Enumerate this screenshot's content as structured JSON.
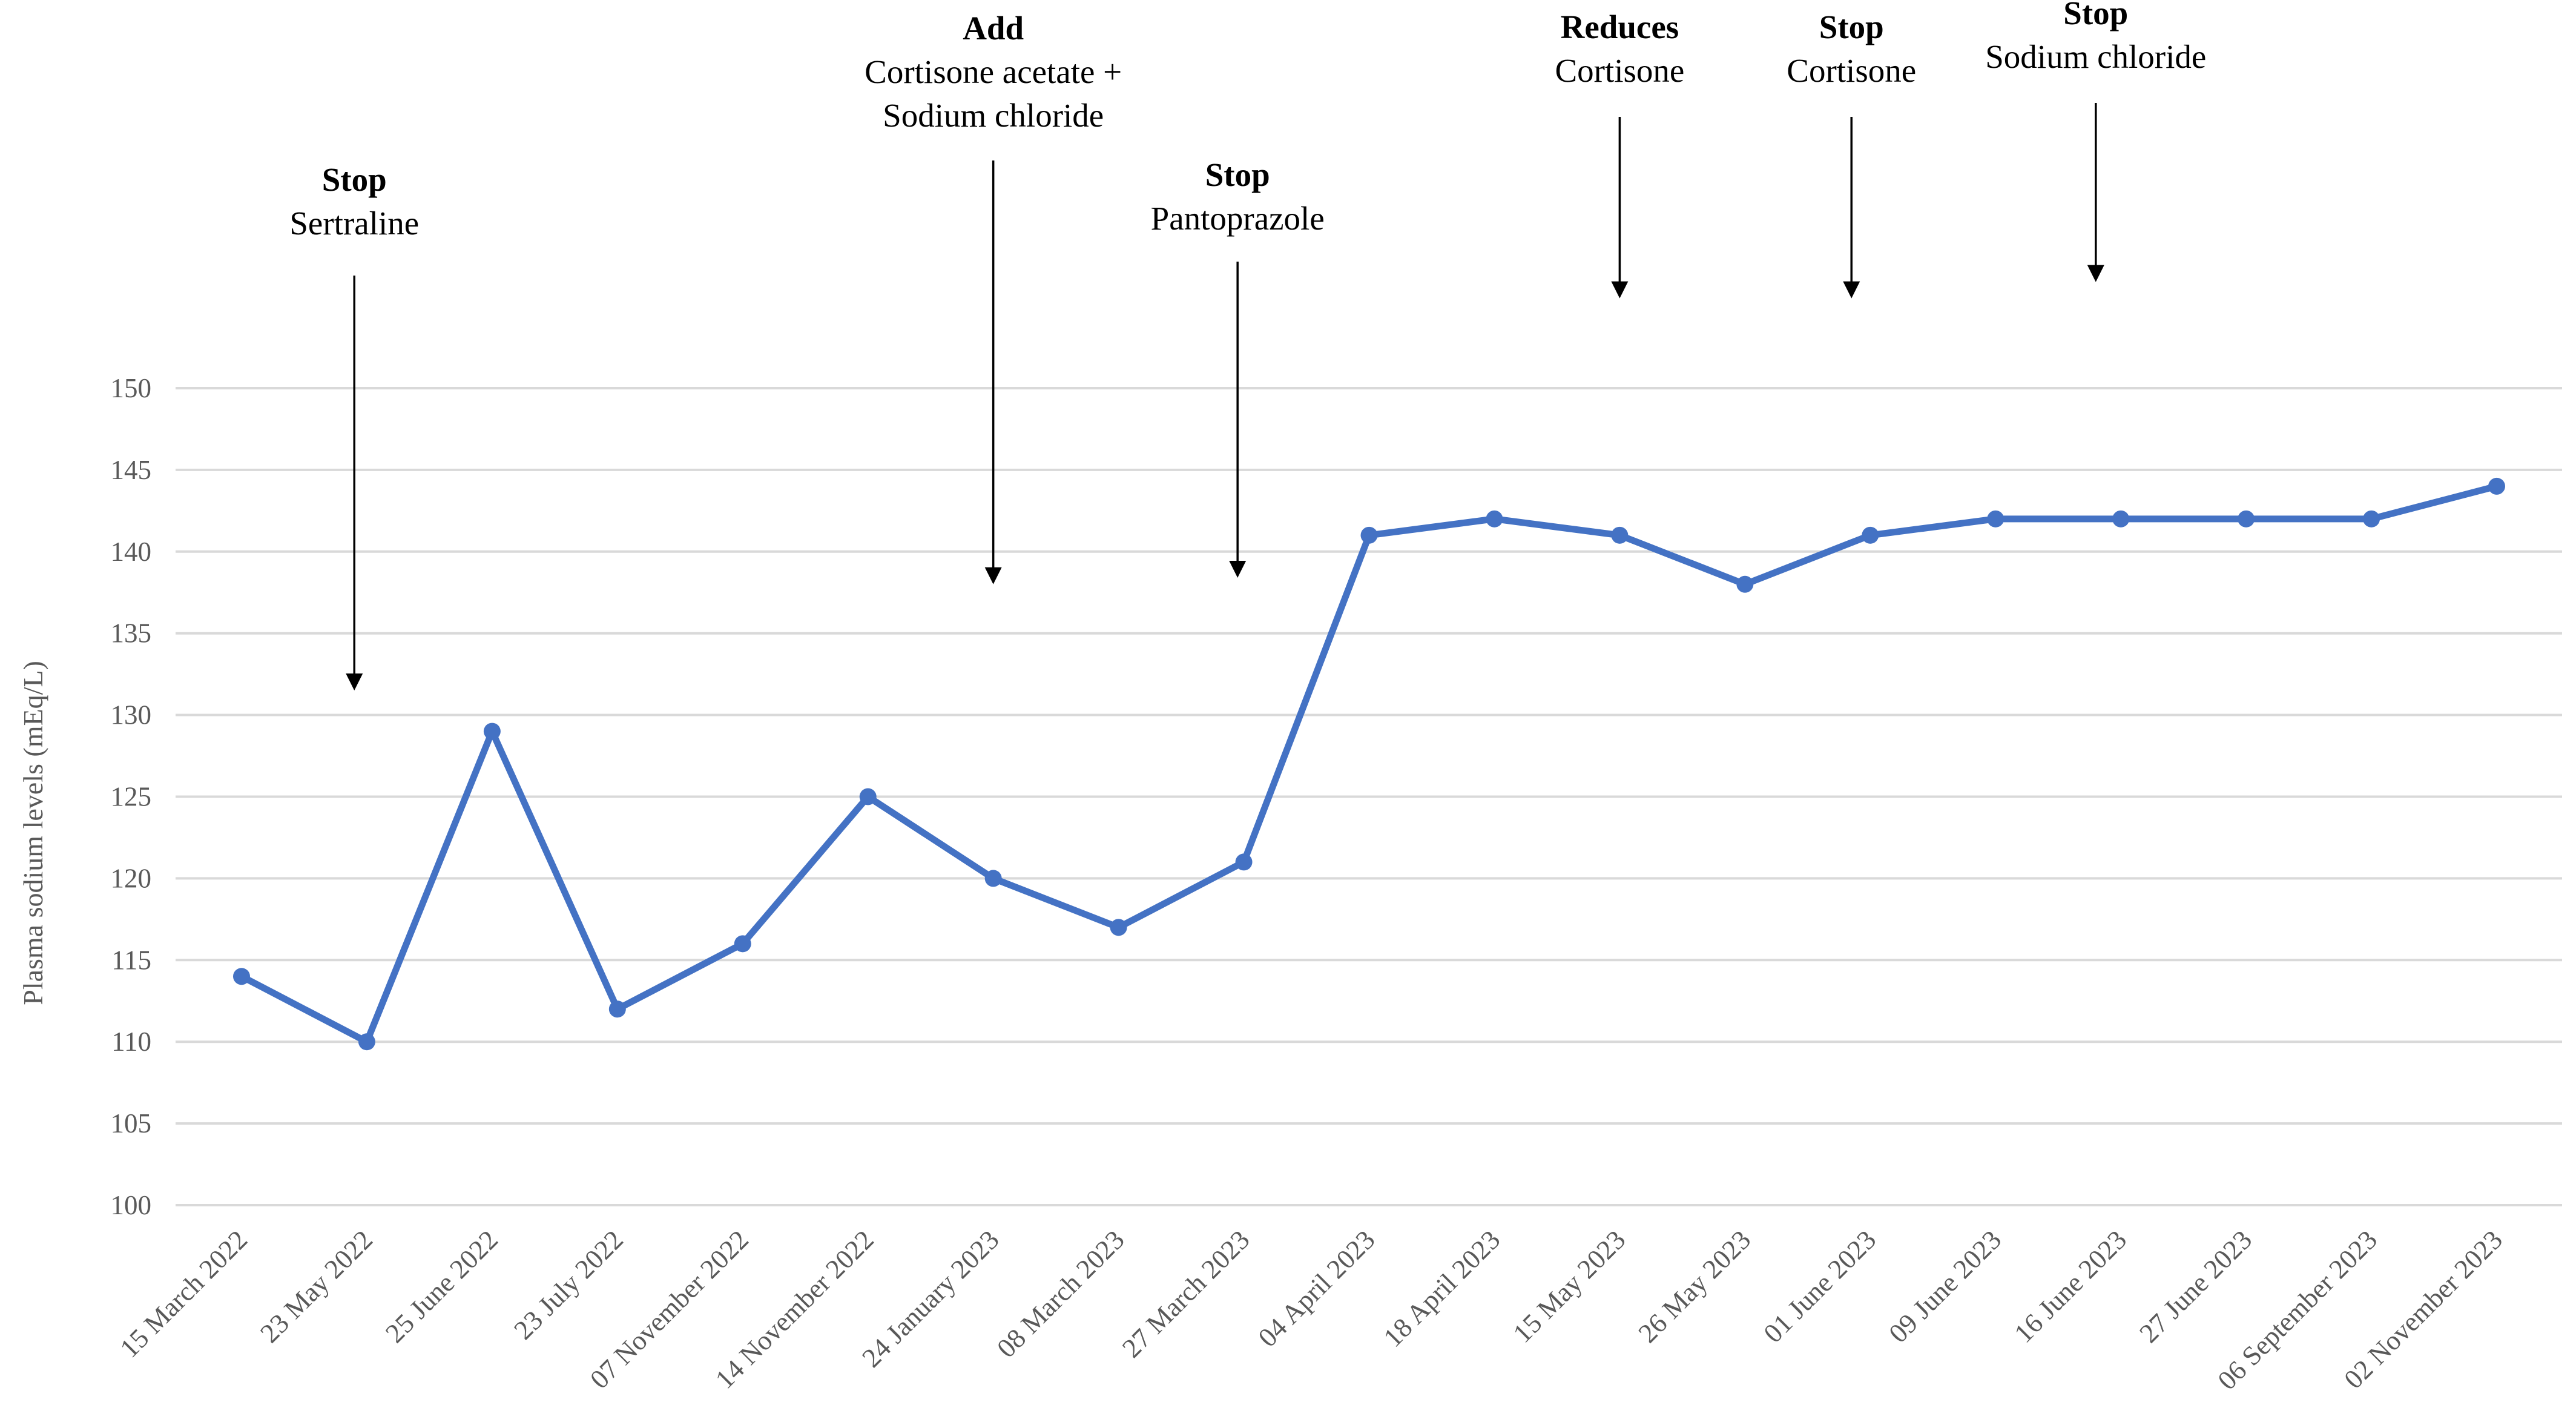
{
  "chart_data": {
    "type": "line",
    "title": "",
    "xlabel": "",
    "ylabel": "Plasma sodium levels (mEq/L)",
    "ylim": [
      100,
      150
    ],
    "yticks": [
      100,
      105,
      110,
      115,
      120,
      125,
      130,
      135,
      140,
      145,
      150
    ],
    "grid": true,
    "legend": "none",
    "categories": [
      "15 March 2022",
      "23 May 2022",
      "25 June 2022",
      "23 July 2022",
      "07 November 2022",
      "14 November 2022",
      "24 January 2023",
      "08 March 2023",
      "27 March 2023",
      "04 April 2023",
      "18 April 2023",
      "15 May 2023",
      "26 May 2023",
      "01 June 2023",
      "09 June 2023",
      "16 June 2023",
      "27 June 2023",
      "06 September 2023",
      "02 November 2023"
    ],
    "series": [
      {
        "color": "#4472C4",
        "values": [
          114,
          110,
          129,
          112,
          116,
          125,
          120,
          117,
          121,
          141,
          142,
          141,
          138,
          141,
          142,
          142,
          142,
          142,
          144
        ]
      }
    ],
    "annotations": [
      {
        "title": "Stop",
        "lines": [
          "Sertraline"
        ],
        "at": 0.9,
        "arrow_to": 131.5
      },
      {
        "title": "Add",
        "lines": [
          "Cortisone acetate +",
          "Sodium chloride"
        ],
        "at": 6.0,
        "arrow_to": 138.0
      },
      {
        "title": "Stop",
        "lines": [
          "Pantoprazole"
        ],
        "at": 7.95,
        "arrow_to": 138.4
      },
      {
        "title": "Reduces",
        "lines": [
          "Cortisone"
        ],
        "at": 11.0,
        "arrow_to": 155.5
      },
      {
        "title": "Stop",
        "lines": [
          "Cortisone"
        ],
        "at": 12.85,
        "arrow_to": 155.5
      },
      {
        "title": "Stop",
        "lines": [
          "Sodium chloride"
        ],
        "at": 14.8,
        "arrow_to": 156.5
      }
    ]
  }
}
